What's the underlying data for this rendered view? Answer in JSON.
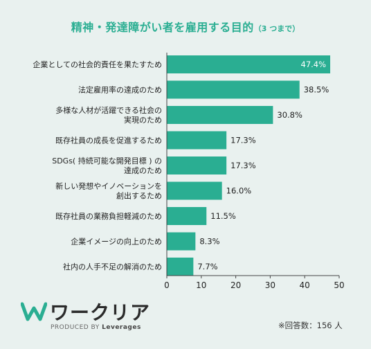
{
  "title": {
    "main": "精神・発達障がい者を雇用する目的",
    "sub": "（3 つまで）"
  },
  "colors": {
    "bar": "#2aae92",
    "title": "#2aae92",
    "background": "#e9f1ef"
  },
  "chart_data": {
    "type": "bar",
    "orientation": "horizontal",
    "categories": [
      "企業としての社会的責任を果たすため",
      "法定雇用率の達成のため",
      "多様な人材が活躍できる社会の\n実現のため",
      "既存社員の成長を促進するため",
      "SDGs( 持続可能な開発目標 ) の\n達成のため",
      "新しい発想やイノベーションを\n創出するため",
      "既存社員の業務負担軽減のため",
      "企業イメージの向上のため",
      "社内の人手不足の解消のため"
    ],
    "values": [
      47.4,
      38.5,
      30.8,
      17.3,
      17.3,
      16.0,
      11.5,
      8.3,
      7.7
    ],
    "value_labels": [
      "47.4%",
      "38.5%",
      "30.8%",
      "17.3%",
      "17.3%",
      "16.0%",
      "11.5%",
      "8.3%",
      "7.7%"
    ],
    "xlim": [
      0,
      50
    ],
    "xticks": [
      0,
      10,
      20,
      30,
      40,
      50
    ],
    "grid": false
  },
  "brand": {
    "name": "ワークリア",
    "produced_by": "PRODUCED BY",
    "company": "Leverages",
    "logo_icon": "w-logo-icon"
  },
  "footnote": "※回答数：156 人"
}
